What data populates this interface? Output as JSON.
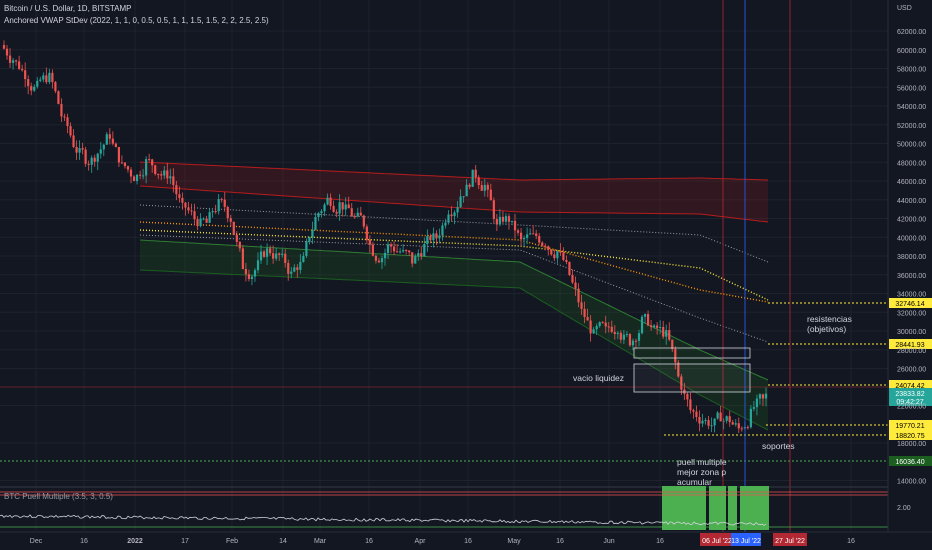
{
  "header": {
    "symbol": "Bitcoin / U.S. Dollar, 1D, BITSTAMP",
    "indicator": "Anchored VWAP StDev (2022, 1, 1, 0, 0.5, 0.5, 1, 1, 1.5, 1.5, 2, 2, 2.5, 2.5)",
    "puell_label": "BTC Puell Multiple (3.5, 3, 0.5)",
    "currency": "USD"
  },
  "colors": {
    "background": "#131722",
    "up": "#26a69a",
    "down": "#ef5350",
    "price_tag": "#26a69a",
    "level_tag": "#ffeb3b",
    "green_tag": "#1b5e20",
    "puell_zone": "#4caf50"
  },
  "annotations": {
    "resistencias": "resistencias\n(objetivos)",
    "vacio": "vacio liquidez",
    "soportes": "soportes",
    "puell": "puell multiple\nmejor zona p\nacumular"
  },
  "chart_data": {
    "type": "candlestick",
    "yaxis": {
      "ticks": [
        "62000.00",
        "60000.00",
        "58000.00",
        "56000.00",
        "54000.00",
        "52000.00",
        "50000.00",
        "48000.00",
        "46000.00",
        "44000.00",
        "42000.00",
        "40000.00",
        "38000.00",
        "36000.00",
        "34000.00",
        "32000.00",
        "30000.00",
        "28000.00",
        "26000.00",
        "22000.00",
        "18000.00",
        "14000.00"
      ],
      "unit": "USD"
    },
    "puell_ticks": [
      "2.00"
    ],
    "xaxis": {
      "ticks": [
        "Dec",
        "16",
        "2022",
        "17",
        "Feb",
        "14",
        "Mar",
        "16",
        "Apr",
        "16",
        "May",
        "16",
        "Jun",
        "16",
        "06 Jul '22",
        "13 Jul '22",
        "27 Jul '22",
        "16"
      ]
    },
    "levels": [
      {
        "value": "32746.14",
        "kind": "resistance"
      },
      {
        "value": "28441.93",
        "kind": "resistance"
      },
      {
        "value": "24074.42",
        "kind": "resistance"
      },
      {
        "value": "23833.82",
        "kind": "last_price"
      },
      {
        "value": "09:42:27",
        "kind": "countdown"
      },
      {
        "value": "19770.21",
        "kind": "support"
      },
      {
        "value": "18820.75",
        "kind": "support"
      },
      {
        "value": "16036.40",
        "kind": "support"
      }
    ],
    "ohlc_close_approx": [
      59000,
      57500,
      56000,
      57000,
      53000,
      50000,
      48500,
      49000,
      51000,
      47500,
      46500,
      48000,
      47000,
      46500,
      43000,
      42000,
      41500,
      43500,
      42000,
      37000,
      36500,
      38500,
      38000,
      36000,
      37500,
      42000,
      44000,
      43500,
      42500,
      41500,
      38000,
      39000,
      38500,
      37500,
      39000,
      40000,
      43000,
      44500,
      46500,
      45500,
      41000,
      42000,
      39500,
      40000,
      39500,
      38500,
      36000,
      32000,
      29500,
      30000,
      30500,
      29000,
      31000,
      30000,
      29500,
      25000,
      21500,
      20500,
      20000,
      20500,
      19500,
      21000,
      22500,
      23800
    ],
    "vwap_anchor": "2022"
  },
  "puell": {
    "zone_marker": "green"
  }
}
